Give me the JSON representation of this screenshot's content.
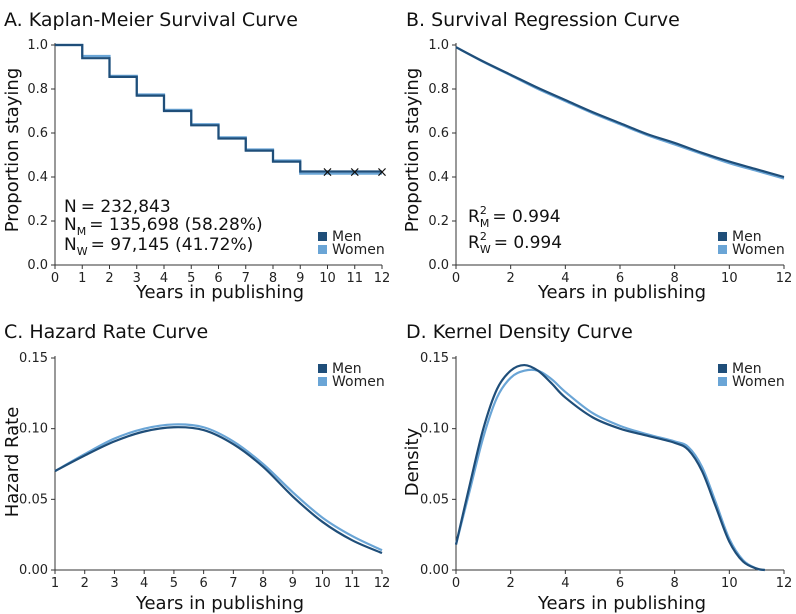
{
  "colors": {
    "men": "#1f4e79",
    "women": "#6aa5d6",
    "axis": "#333333"
  },
  "chart_data": [
    {
      "id": "A",
      "type": "line",
      "step": true,
      "title": "A. Kaplan-Meier Survival Curve",
      "xlabel": "Years in publishing",
      "ylabel": "Proportion staying",
      "xlim": [
        0,
        12
      ],
      "ylim": [
        0,
        1
      ],
      "xticks": [
        "0",
        "1",
        "2",
        "3",
        "4",
        "5",
        "6",
        "7",
        "8",
        "9",
        "10",
        "11",
        "12"
      ],
      "yticks": [
        "0.0",
        "0.2",
        "0.4",
        "0.6",
        "0.8",
        "1.0"
      ],
      "legend": {
        "position": "bottom-right",
        "entries": [
          "Men",
          "Women"
        ]
      },
      "x": [
        0,
        1,
        2,
        3,
        4,
        5,
        6,
        7,
        8,
        9,
        10,
        11,
        12
      ],
      "series": [
        {
          "name": "Men",
          "values": [
            1.0,
            0.94,
            0.855,
            0.77,
            0.7,
            0.635,
            0.575,
            0.52,
            0.47,
            0.425,
            0.425,
            0.425,
            0.425
          ]
        },
        {
          "name": "Women",
          "values": [
            1.0,
            0.95,
            0.86,
            0.775,
            0.705,
            0.64,
            0.58,
            0.525,
            0.475,
            0.415,
            0.415,
            0.415,
            0.415
          ]
        }
      ],
      "censor_x": [
        10,
        11,
        12
      ],
      "censor_symbol": "×",
      "stats": {
        "n_prefix": "N",
        "n_value": "= 232,843",
        "nm_prefix": "N",
        "nm_sub": "M",
        "nm_value": "= 135,698 (58.28%)",
        "nw_prefix": "N",
        "nw_sub": "W",
        "nw_value": "= 97,145 (41.72%)"
      }
    },
    {
      "id": "B",
      "type": "line",
      "title": "B. Survival Regression Curve",
      "xlabel": "Years in publishing",
      "ylabel": "Proportion staying",
      "xlim": [
        0,
        12
      ],
      "ylim": [
        0,
        1
      ],
      "xticks": [
        "0",
        "2",
        "4",
        "6",
        "8",
        "10",
        "12"
      ],
      "yticks": [
        "0.0",
        "0.2",
        "0.4",
        "0.6",
        "0.8",
        "1.0"
      ],
      "legend": {
        "position": "bottom-right",
        "entries": [
          "Men",
          "Women"
        ]
      },
      "x": [
        0,
        1,
        2,
        3,
        4,
        5,
        6,
        7,
        8,
        9,
        10,
        11,
        12
      ],
      "series": [
        {
          "name": "Men",
          "values": [
            0.99,
            0.925,
            0.865,
            0.805,
            0.75,
            0.695,
            0.645,
            0.595,
            0.555,
            0.51,
            0.47,
            0.435,
            0.4
          ]
        },
        {
          "name": "Women",
          "values": [
            0.99,
            0.923,
            0.862,
            0.8,
            0.745,
            0.69,
            0.64,
            0.59,
            0.548,
            0.505,
            0.463,
            0.428,
            0.393
          ]
        }
      ],
      "stats": {
        "rm_prefix": "R",
        "rm_sup": "2",
        "rm_sub": "M",
        "rm_value": "= 0.994",
        "rw_prefix": "R",
        "rw_sup": "2",
        "rw_sub": "W",
        "rw_value": "= 0.994"
      }
    },
    {
      "id": "C",
      "type": "line",
      "title": "C. Hazard Rate Curve",
      "xlabel": "Years in publishing",
      "ylabel": "Hazard Rate",
      "xlim": [
        1,
        12
      ],
      "ylim": [
        0,
        0.15
      ],
      "xticks": [
        "1",
        "2",
        "3",
        "4",
        "5",
        "6",
        "7",
        "8",
        "9",
        "10",
        "11",
        "12"
      ],
      "yticks": [
        "0.00",
        "0.05",
        "0.10",
        "0.15"
      ],
      "legend": {
        "position": "top-right",
        "entries": [
          "Men",
          "Women"
        ]
      },
      "x": [
        1,
        2,
        3,
        4,
        5,
        6,
        7,
        8,
        9,
        10,
        11,
        12
      ],
      "series": [
        {
          "name": "Men",
          "values": [
            0.07,
            0.081,
            0.091,
            0.098,
            0.101,
            0.099,
            0.089,
            0.073,
            0.052,
            0.034,
            0.021,
            0.012
          ]
        },
        {
          "name": "Women",
          "values": [
            0.07,
            0.082,
            0.093,
            0.1,
            0.103,
            0.101,
            0.091,
            0.075,
            0.055,
            0.037,
            0.024,
            0.014
          ]
        }
      ]
    },
    {
      "id": "D",
      "type": "line",
      "title": "D. Kernel Density Curve",
      "xlabel": "Years in publishing",
      "ylabel": "Density",
      "xlim": [
        0,
        12
      ],
      "ylim": [
        0,
        0.15
      ],
      "xticks": [
        "0",
        "2",
        "4",
        "6",
        "8",
        "10",
        "12"
      ],
      "yticks": [
        "0.00",
        "0.05",
        "0.10",
        "0.15"
      ],
      "legend": {
        "position": "top-right",
        "entries": [
          "Men",
          "Women"
        ]
      },
      "x": [
        0,
        0.5,
        1,
        1.5,
        2,
        2.5,
        3,
        3.5,
        4,
        5,
        6,
        7,
        8,
        8.5,
        9,
        9.5,
        10,
        10.5,
        11,
        11.3
      ],
      "series": [
        {
          "name": "Men",
          "values": [
            0.018,
            0.06,
            0.1,
            0.128,
            0.141,
            0.145,
            0.141,
            0.132,
            0.122,
            0.108,
            0.1,
            0.095,
            0.09,
            0.085,
            0.07,
            0.045,
            0.02,
            0.006,
            0.001,
            0.0
          ]
        },
        {
          "name": "Women",
          "values": [
            0.018,
            0.056,
            0.094,
            0.122,
            0.136,
            0.141,
            0.141,
            0.135,
            0.126,
            0.111,
            0.102,
            0.096,
            0.091,
            0.087,
            0.073,
            0.048,
            0.022,
            0.007,
            0.001,
            0.0
          ]
        }
      ]
    }
  ]
}
